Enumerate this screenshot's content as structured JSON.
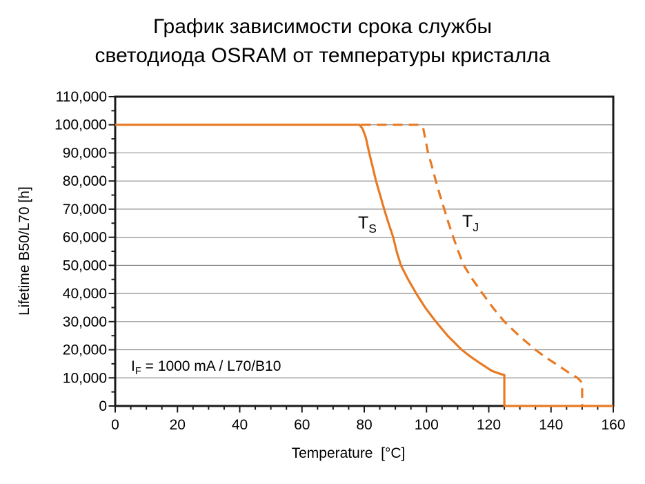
{
  "title": {
    "line1": "График зависимости срока службы",
    "line2": "светодиода OSRAM от температуры кристалла"
  },
  "colors": {
    "title": "#F15B31",
    "curve": "#E87A24",
    "grid": "#8E8E8E",
    "axis": "#1A1A1A",
    "text": "#000000"
  },
  "chart_data": {
    "type": "line",
    "title": "График зависимости срока службы светодиода OSRAM от температуры кристалла",
    "xlabel": "Temperature  [°C]",
    "ylabel": "Lifetime B50/L70 [h]",
    "xlim": [
      0,
      160
    ],
    "ylim": [
      0,
      110000
    ],
    "grid": "horizontal",
    "legend": "none",
    "x_ticks": {
      "major": [
        0,
        20,
        40,
        60,
        80,
        100,
        120,
        140,
        160
      ],
      "labels": [
        "0",
        "20",
        "40",
        "60",
        "80",
        "100",
        "120",
        "140",
        "160"
      ],
      "minor_step": 5
    },
    "y_ticks": {
      "major": [
        0,
        10000,
        20000,
        30000,
        40000,
        50000,
        60000,
        70000,
        80000,
        90000,
        100000,
        110000
      ],
      "labels": [
        "0",
        "10,000",
        "20,000",
        "30,000",
        "40,000",
        "50,000",
        "60,000",
        "70,000",
        "80,000",
        "90,000",
        "100,000",
        "110,000"
      ],
      "minor_step": 5000
    },
    "annotation": {
      "pre": "I",
      "sub": "F",
      "rest": " = 1000 mA / L70/B10"
    },
    "series": [
      {
        "name": "TS",
        "label": {
          "main": "T",
          "sub": "S"
        },
        "style": "solid",
        "color": "#E87A24",
        "points": [
          [
            0,
            100000
          ],
          [
            78.5,
            100000
          ],
          [
            79.5,
            98500
          ],
          [
            80.5,
            95500
          ],
          [
            81.6,
            90000
          ],
          [
            82.7,
            85000
          ],
          [
            83.8,
            80000
          ],
          [
            85.1,
            75000
          ],
          [
            86.4,
            70000
          ],
          [
            87.8,
            65000
          ],
          [
            89.3,
            60000
          ],
          [
            90.4,
            55000
          ],
          [
            91.8,
            50000
          ],
          [
            94.1,
            45000
          ],
          [
            96.7,
            40000
          ],
          [
            99.6,
            35000
          ],
          [
            103,
            30000
          ],
          [
            106.8,
            25000
          ],
          [
            111.3,
            20000
          ],
          [
            114.2,
            17500
          ],
          [
            117.5,
            15000
          ],
          [
            121,
            12500
          ],
          [
            123.5,
            11500
          ],
          [
            125,
            11000
          ],
          [
            125,
            0
          ],
          [
            160,
            0
          ]
        ]
      },
      {
        "name": "TJ",
        "label": {
          "main": "T",
          "sub": "J"
        },
        "style": "dashed",
        "color": "#E87A24",
        "points": [
          [
            79,
            100000
          ],
          [
            98,
            100000
          ],
          [
            99,
            98500
          ],
          [
            100.5,
            90000
          ],
          [
            101.8,
            85000
          ],
          [
            103,
            80000
          ],
          [
            104.3,
            75000
          ],
          [
            105.7,
            70000
          ],
          [
            107.1,
            65000
          ],
          [
            108.6,
            60000
          ],
          [
            110.2,
            55000
          ],
          [
            112,
            50000
          ],
          [
            114.8,
            45000
          ],
          [
            118,
            40000
          ],
          [
            121.3,
            35000
          ],
          [
            125,
            30000
          ],
          [
            129.7,
            25000
          ],
          [
            135,
            20000
          ],
          [
            138,
            17500
          ],
          [
            141.5,
            15000
          ],
          [
            145.5,
            12000
          ],
          [
            148.5,
            10000
          ],
          [
            150,
            8300
          ],
          [
            150,
            0
          ]
        ]
      }
    ]
  }
}
